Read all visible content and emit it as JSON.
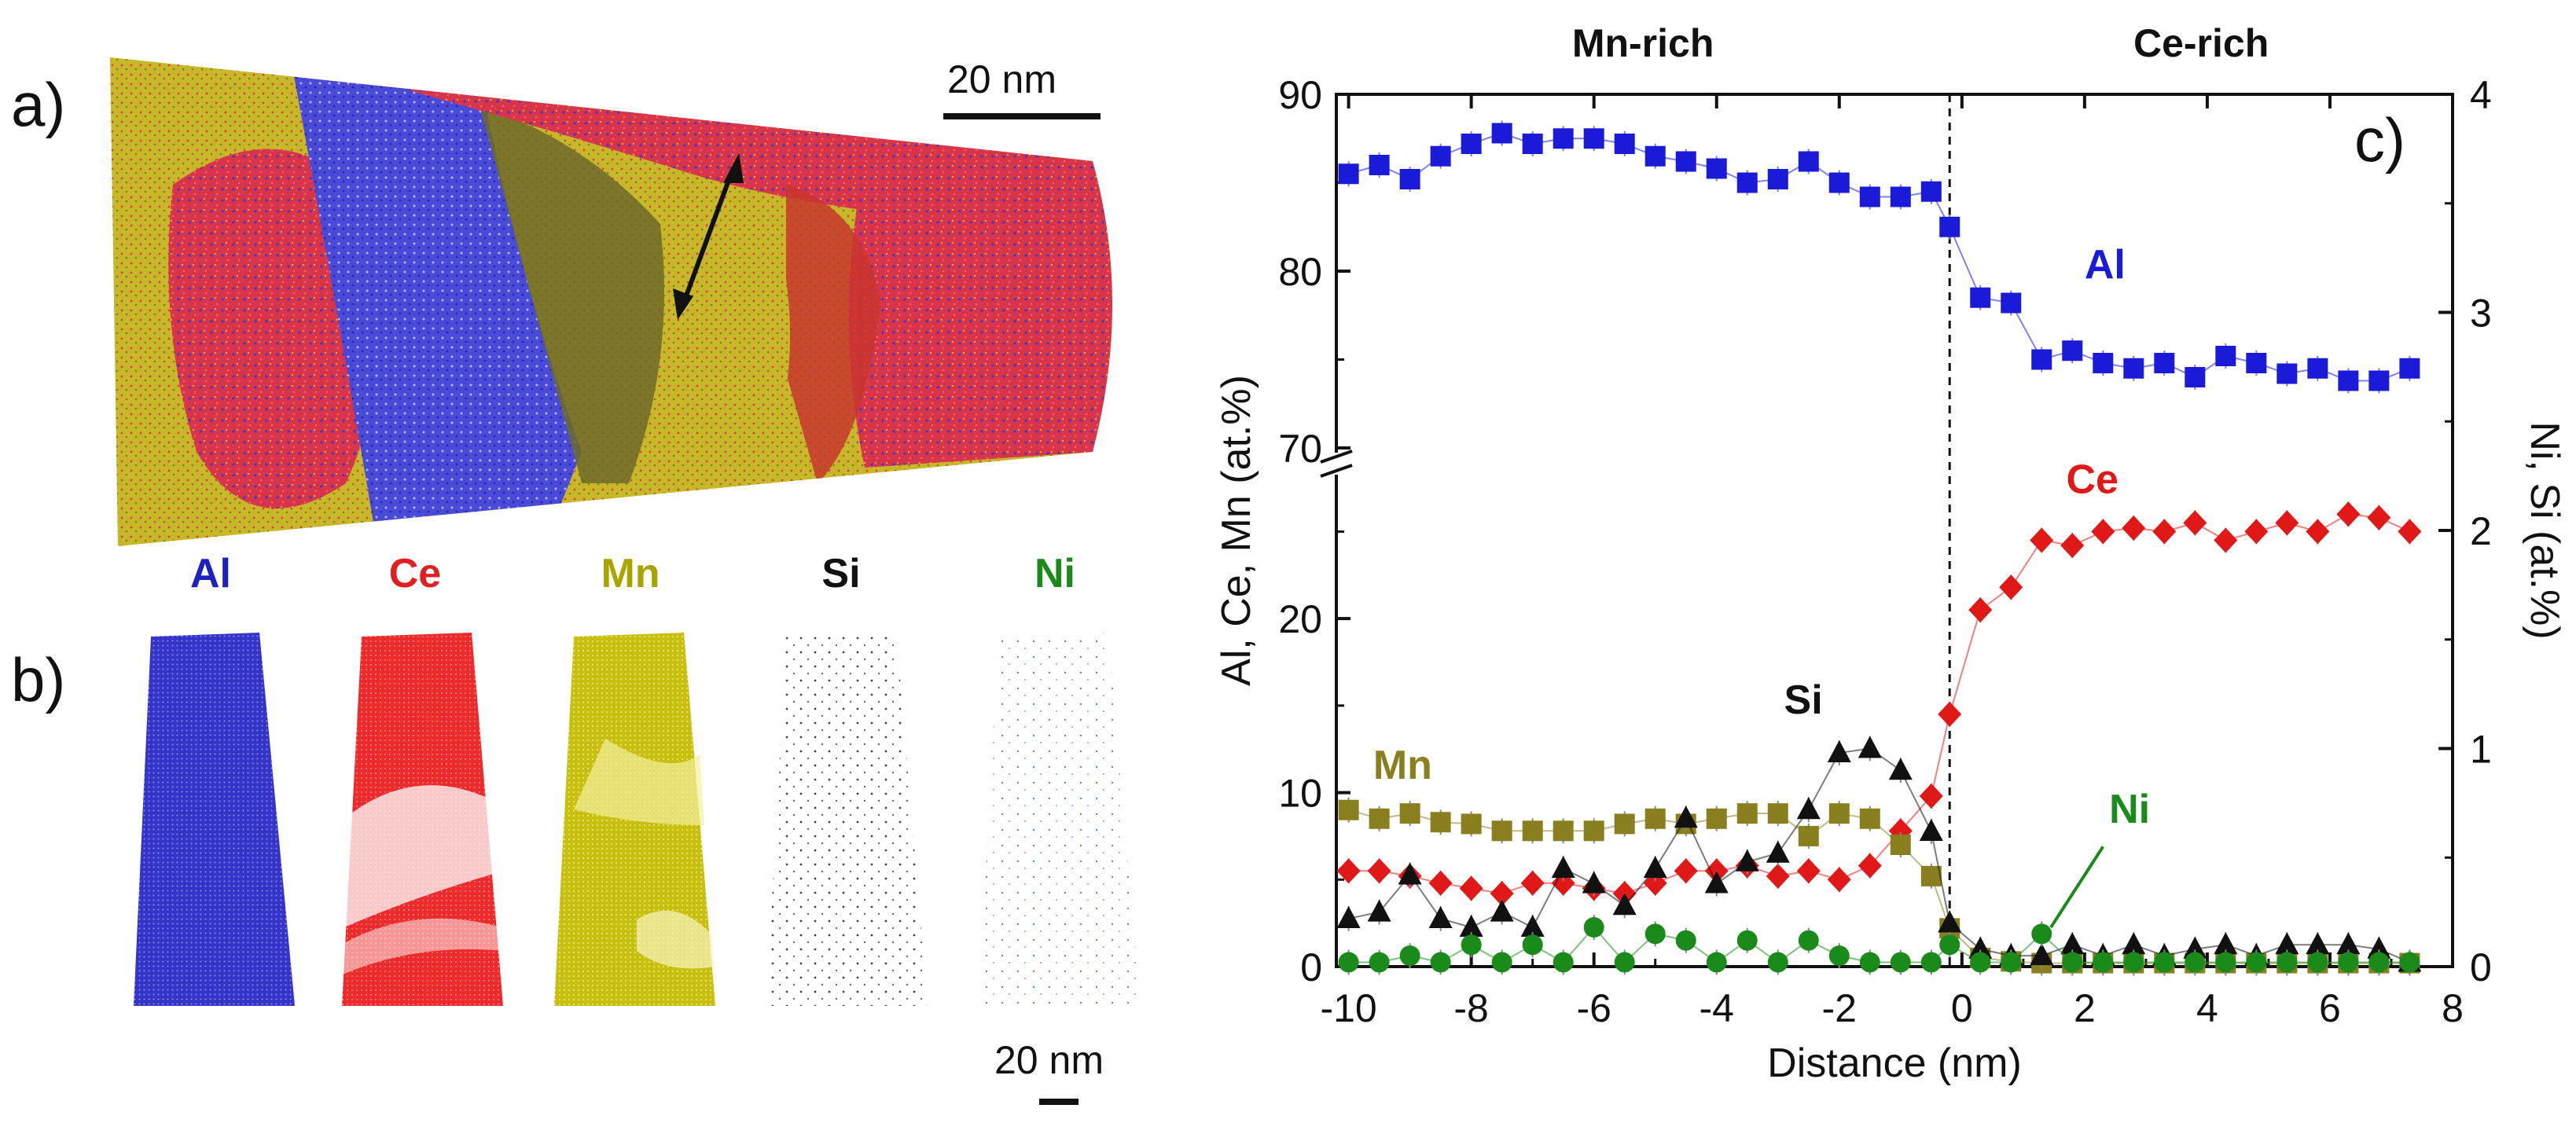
{
  "figure": {
    "panel_a": {
      "letter": "a)",
      "scale_bar_label": "20 nm"
    },
    "panel_b": {
      "letter": "b)",
      "scale_bar_label": "20 nm",
      "maps": [
        {
          "element": "Al",
          "color": "#2020c0"
        },
        {
          "element": "Ce",
          "color": "#e02020"
        },
        {
          "element": "Mn",
          "color": "#b8b800"
        },
        {
          "element": "Si",
          "color": "#111111"
        },
        {
          "element": "Ni",
          "color": "#1a8a1a"
        }
      ]
    }
  },
  "chart_data": {
    "type": "scatter",
    "panel_letter": "c)",
    "xlabel": "Distance (nm)",
    "ylabel_left": "Al, Ce, Mn (at.%)",
    "ylabel_right": "Ni, Si (at.%)",
    "region_labels": [
      "Mn-rich",
      "Ce-rich"
    ],
    "interface_x": -0.2,
    "xlim": [
      -10.2,
      8
    ],
    "x_ticks": [
      "-10",
      "-8",
      "-6",
      "-4",
      "-2",
      "0",
      "2",
      "4",
      "6",
      "8"
    ],
    "y_left_upper_ticks": [
      "70",
      "80",
      "90"
    ],
    "y_left_lower_ticks": [
      "0",
      "10",
      "20"
    ],
    "y_right_ticks": [
      "0",
      "1",
      "2",
      "3",
      "4"
    ],
    "axis_break_left": [
      28,
      70
    ],
    "series": [
      {
        "name": "Al",
        "label": "Al",
        "axis": "left",
        "marker": "square",
        "color": "#1a1ad8",
        "x": [
          -10,
          -9.5,
          -9,
          -8.5,
          -8,
          -7.5,
          -7,
          -6.5,
          -6,
          -5.5,
          -5,
          -4.5,
          -4,
          -3.5,
          -3,
          -2.5,
          -2,
          -1.5,
          -1,
          -0.5,
          -0.2,
          0.3,
          0.8,
          1.3,
          1.8,
          2.3,
          2.8,
          3.3,
          3.8,
          4.3,
          4.8,
          5.3,
          5.8,
          6.3,
          6.8,
          7.3
        ],
        "y": [
          85.5,
          86,
          85.2,
          86.5,
          87.2,
          87.8,
          87.2,
          87.5,
          87.5,
          87.2,
          86.5,
          86.2,
          85.8,
          85,
          85.2,
          86.2,
          85,
          84.2,
          84.2,
          84.5,
          82.5,
          78.5,
          78.2,
          75,
          75.5,
          74.8,
          74.5,
          74.8,
          74,
          75.2,
          74.8,
          74.2,
          74.5,
          73.8,
          73.8,
          74.5
        ]
      },
      {
        "name": "Ce",
        "label": "Ce",
        "axis": "left",
        "marker": "diamond",
        "color": "#e01818",
        "x": [
          -10,
          -9.5,
          -9,
          -8.5,
          -8,
          -7.5,
          -7,
          -6.5,
          -6,
          -5.5,
          -5,
          -4.5,
          -4,
          -3.5,
          -3,
          -2.5,
          -2,
          -1.5,
          -1,
          -0.5,
          -0.2,
          0.3,
          0.8,
          1.3,
          1.8,
          2.3,
          2.8,
          3.3,
          3.8,
          4.3,
          4.8,
          5.3,
          5.8,
          6.3,
          6.8,
          7.3
        ],
        "y": [
          5.5,
          5.5,
          5.2,
          4.8,
          4.5,
          4.2,
          4.8,
          4.8,
          4.5,
          4.2,
          4.8,
          5.5,
          5.5,
          5.8,
          5.2,
          5.5,
          5,
          5.8,
          7.8,
          9.8,
          14.5,
          20.5,
          21.8,
          24.5,
          24.2,
          25,
          25.2,
          25,
          25.5,
          24.5,
          25,
          25.5,
          25,
          26,
          25.8,
          25
        ]
      },
      {
        "name": "Mn",
        "label": "Mn",
        "axis": "left",
        "marker": "square",
        "color": "#8a7f1e",
        "x": [
          -10,
          -9.5,
          -9,
          -8.5,
          -8,
          -7.5,
          -7,
          -6.5,
          -6,
          -5.5,
          -5,
          -4.5,
          -4,
          -3.5,
          -3,
          -2.5,
          -2,
          -1.5,
          -1,
          -0.5,
          -0.2,
          0.3,
          0.8,
          1.3,
          1.8,
          2.3,
          2.8,
          3.3,
          3.8,
          4.3,
          4.8,
          5.3,
          5.8,
          6.3,
          6.8,
          7.3
        ],
        "y": [
          9,
          8.5,
          8.8,
          8.3,
          8.2,
          7.8,
          7.8,
          7.8,
          7.8,
          8.2,
          8.5,
          8.2,
          8.5,
          8.8,
          8.8,
          7.5,
          8.8,
          8.5,
          7,
          5.2,
          2.2,
          0.5,
          0.3,
          0.2,
          0.2,
          0.2,
          0.2,
          0.2,
          0.2,
          0.2,
          0.2,
          0.2,
          0.2,
          0.2,
          0.2,
          0.2
        ]
      },
      {
        "name": "Si",
        "label": "Si",
        "axis": "right",
        "marker": "triangle",
        "color": "#111111",
        "x": [
          -10,
          -9.5,
          -9,
          -8.5,
          -8,
          -7.5,
          -7,
          -6.5,
          -6,
          -5.5,
          -5,
          -4.5,
          -4,
          -3.5,
          -3,
          -2.5,
          -2,
          -1.5,
          -1,
          -0.5,
          -0.2,
          0.3,
          0.8,
          1.3,
          1.8,
          2.3,
          2.8,
          3.3,
          3.8,
          4.3,
          4.8,
          5.3,
          5.8,
          6.3,
          6.8,
          7.3
        ],
        "y": [
          0.22,
          0.25,
          0.42,
          0.22,
          0.18,
          0.25,
          0.18,
          0.45,
          0.38,
          0.28,
          0.45,
          0.68,
          0.38,
          0.48,
          0.52,
          0.72,
          0.98,
          1.0,
          0.9,
          0.62,
          0.2,
          0.08,
          0.05,
          0.05,
          0.1,
          0.05,
          0.1,
          0.05,
          0.08,
          0.1,
          0.05,
          0.1,
          0.1,
          0.1,
          0.08,
          0.02
        ]
      },
      {
        "name": "Ni",
        "label": "Ni",
        "axis": "right",
        "marker": "circle",
        "color": "#1a8a1a",
        "x": [
          -10,
          -9.5,
          -9,
          -8.5,
          -8,
          -7.5,
          -7,
          -6.5,
          -6,
          -5.5,
          -5,
          -4.5,
          -4,
          -3.5,
          -3,
          -2.5,
          -2,
          -1.5,
          -1,
          -0.5,
          -0.2,
          0.3,
          0.8,
          1.3,
          1.8,
          2.3,
          2.8,
          3.3,
          3.8,
          4.3,
          4.8,
          5.3,
          5.8,
          6.3,
          6.8,
          7.3
        ],
        "y": [
          0.02,
          0.02,
          0.05,
          0.02,
          0.1,
          0.02,
          0.1,
          0.02,
          0.18,
          0.02,
          0.15,
          0.12,
          0.02,
          0.12,
          0.02,
          0.12,
          0.05,
          0.02,
          0.02,
          0.02,
          0.1,
          0.02,
          0.02,
          0.15,
          0.02,
          0.02,
          0.02,
          0.02,
          0.02,
          0.02,
          0.02,
          0.02,
          0.02,
          0.02,
          0.02,
          0.02
        ]
      }
    ]
  }
}
